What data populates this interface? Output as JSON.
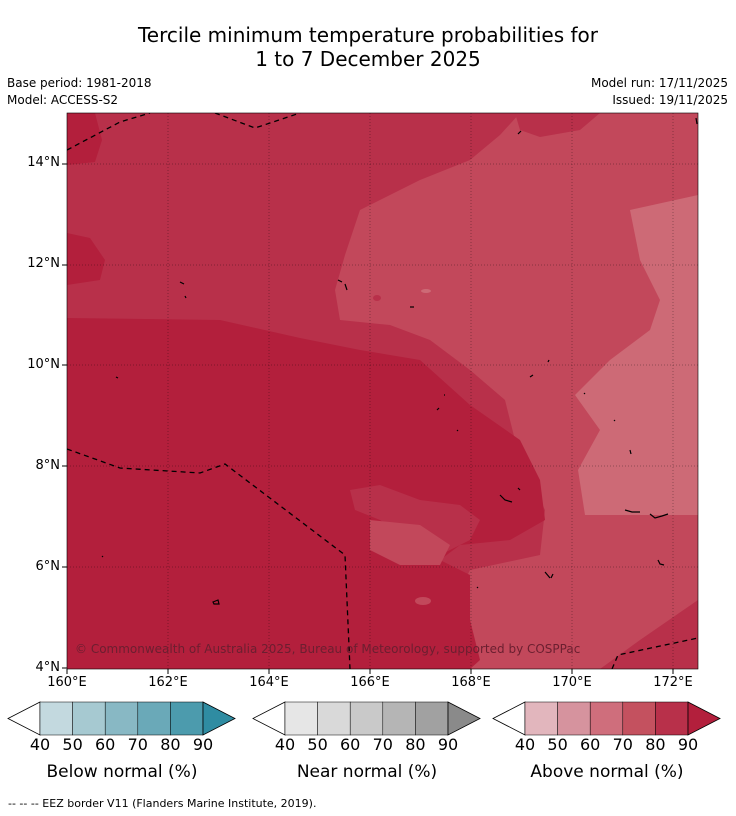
{
  "title": {
    "line1": "Tercile minimum temperature probabilities for",
    "line2": "1 to 7 December 2025"
  },
  "meta": {
    "base_period": "Base period: 1981-2018",
    "model": "Model: ACCESS-S2",
    "model_run": "Model run: 17/11/2025",
    "issued": "Issued: 19/11/2025"
  },
  "map": {
    "lat_labels": [
      "14°N",
      "12°N",
      "10°N",
      "8°N",
      "6°N",
      "4°N"
    ],
    "lon_labels": [
      "160°E",
      "162°E",
      "164°E",
      "166°E",
      "168°E",
      "170°E",
      "172°E"
    ],
    "copyright": "© Commonwealth of Australia 2025, Bureau of Meteorology, supported by COSPPac",
    "colors": {
      "above_80": "#b8304a",
      "above_90": "#b31f3c",
      "above_70": "#c44a5c",
      "above_60": "#cf6a76",
      "border": "#000000"
    }
  },
  "colorbars": [
    {
      "title": "Below normal (%)",
      "ticks": [
        "40",
        "50",
        "60",
        "70",
        "80",
        "90"
      ],
      "colors": [
        "#ffffff",
        "#c3d9df",
        "#a6c9d1",
        "#88b8c4",
        "#6aa9b8",
        "#4c9bad",
        "#2f8ca2"
      ]
    },
    {
      "title": "Near normal (%)",
      "ticks": [
        "40",
        "50",
        "60",
        "70",
        "80",
        "90"
      ],
      "colors": [
        "#ffffff",
        "#e6e6e6",
        "#d9d9d9",
        "#c9c9c9",
        "#b5b5b5",
        "#a1a1a1",
        "#8a8a8a"
      ]
    },
    {
      "title": "Above normal (%)",
      "ticks": [
        "40",
        "50",
        "60",
        "70",
        "80",
        "90"
      ],
      "colors": [
        "#ffffff",
        "#e2b6bd",
        "#d6939e",
        "#cf6e7c",
        "#c4515f",
        "#b8304a",
        "#b31f3c"
      ]
    }
  ],
  "footer": "-- -- -- EEZ border V11 (Flanders Marine Institute, 2019)."
}
